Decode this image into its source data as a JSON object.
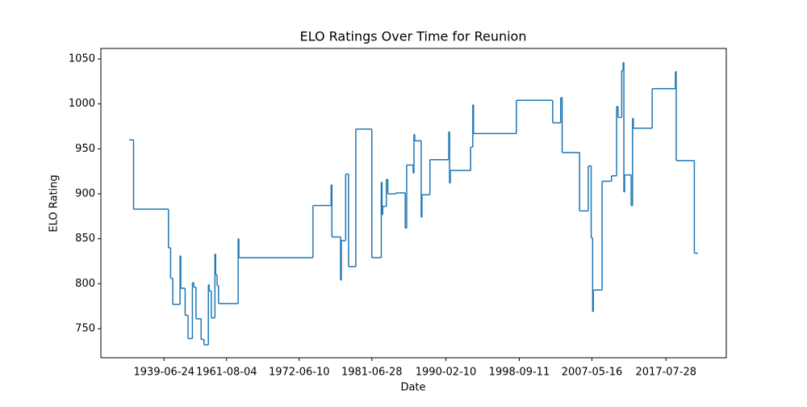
{
  "chart_data": {
    "type": "line",
    "drawstyle": "steps-post",
    "title": "ELO Ratings Over Time for Reunion",
    "xlabel": "Date",
    "ylabel": "ELO Rating",
    "color": "#1f77b4",
    "xlim": [
      -39,
      822
    ],
    "ylim": [
      717.7,
      1061.7
    ],
    "xticks": [
      {
        "value": 48,
        "label": "1939-06-24"
      },
      {
        "value": 134,
        "label": "1961-08-04"
      },
      {
        "value": 234,
        "label": "1972-06-10"
      },
      {
        "value": 334,
        "label": "1981-06-28"
      },
      {
        "value": 436,
        "label": "1990-02-10"
      },
      {
        "value": 537,
        "label": "1998-09-11"
      },
      {
        "value": 637,
        "label": "2007-05-16"
      },
      {
        "value": 739,
        "label": "2017-07-28"
      }
    ],
    "yticks": [
      750,
      800,
      850,
      900,
      950,
      1000,
      1050
    ],
    "x": [
      0,
      6,
      54,
      57,
      60,
      70,
      71,
      77,
      81,
      87,
      89,
      92,
      99,
      103,
      109,
      110,
      113,
      118,
      119,
      121,
      123,
      150,
      151,
      253,
      278,
      279,
      291,
      292,
      298,
      302,
      312,
      334,
      347,
      348,
      349,
      354,
      356,
      367,
      380,
      382,
      391,
      392,
      393,
      402,
      403,
      414,
      440,
      441,
      442,
      470,
      473,
      474,
      533,
      583,
      594,
      596,
      620,
      632,
      636,
      638,
      639,
      651,
      664,
      671,
      673,
      678,
      680,
      681,
      682,
      691,
      693,
      694,
      720,
      752,
      753,
      778,
      783
    ],
    "values": [
      960,
      883,
      840,
      806,
      777,
      831,
      795,
      765,
      739,
      801,
      796,
      761,
      738,
      732,
      799,
      792,
      762,
      833,
      810,
      798,
      778,
      850,
      829,
      887,
      910,
      852,
      804,
      848,
      922,
      819,
      972,
      829,
      913,
      877,
      886,
      916,
      900,
      901,
      862,
      932,
      923,
      966,
      959,
      874,
      899,
      938,
      969,
      912,
      926,
      952,
      999,
      967,
      1004,
      979,
      1007,
      946,
      881,
      931,
      851,
      769,
      793,
      914,
      920,
      997,
      985,
      1037,
      1046,
      902,
      921,
      887,
      984,
      973,
      1017,
      1036,
      937,
      834,
      834
    ]
  }
}
